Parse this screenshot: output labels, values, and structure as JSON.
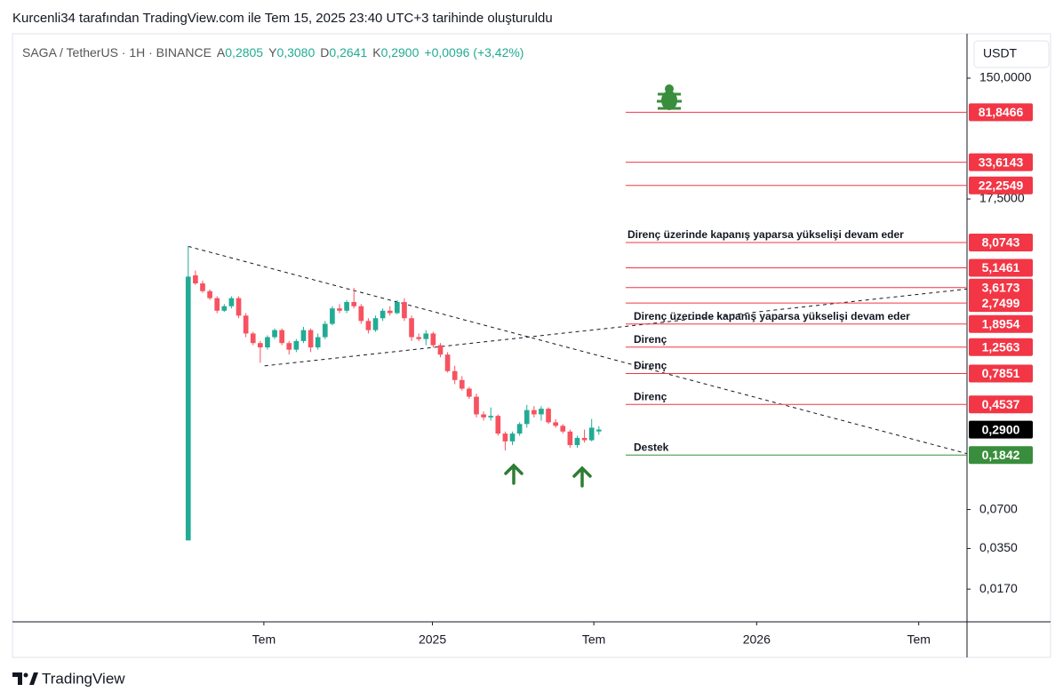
{
  "page_title": "Kurcenli34 tarafından TradingView.com ile Tem 15, 2025 23:40 UTC+3 tarihinde oluşturuldu",
  "brand": "TradingView",
  "chart_data": {
    "type": "candlestick",
    "symbol": "SAGA / TetherUS · 1H · BINANCE",
    "ohlc": [
      {
        "key": "A",
        "label": "0,2805"
      },
      {
        "key": "Y",
        "label": "0,3080"
      },
      {
        "key": "D",
        "label": "0,2641"
      },
      {
        "key": "K",
        "label": "0,2900"
      }
    ],
    "change": "+0,0096 (+3,42%)",
    "currency": "USDT",
    "log_scale": true,
    "up_color": "#22ab94",
    "down_color": "#f7525f",
    "x": [
      0,
      1,
      2,
      3,
      4,
      5,
      6,
      7,
      8,
      9,
      10,
      11,
      12,
      13,
      14,
      15,
      16,
      17,
      18,
      19,
      20,
      21,
      22,
      23,
      24,
      25,
      26,
      27,
      28,
      29,
      30,
      31,
      32,
      33,
      34,
      35,
      36,
      37,
      38,
      39,
      40,
      41,
      42,
      43,
      44,
      45,
      46,
      47,
      48,
      49,
      50,
      51,
      52,
      53,
      54,
      55,
      56,
      57
    ],
    "open": [
      0.0404,
      4.5,
      3.9,
      3.4,
      3.0,
      2.4,
      2.6,
      3.0,
      2.2,
      1.6,
      1.35,
      1.25,
      1.5,
      1.7,
      1.35,
      1.2,
      1.4,
      1.7,
      1.25,
      1.5,
      1.9,
      2.5,
      2.4,
      2.8,
      2.6,
      2.0,
      1.7,
      2.1,
      2.4,
      2.3,
      2.8,
      2.1,
      1.5,
      1.45,
      1.6,
      1.3,
      1.1,
      0.82,
      0.7,
      0.6,
      0.52,
      0.38,
      0.36,
      0.37,
      0.27,
      0.235,
      0.27,
      0.32,
      0.41,
      0.38,
      0.42,
      0.33,
      0.31,
      0.28,
      0.22,
      0.25,
      0.24,
      0.2805
    ],
    "high": [
      7.53,
      4.9,
      4.1,
      3.5,
      3.1,
      2.7,
      3.1,
      3.1,
      2.3,
      1.65,
      1.4,
      1.55,
      1.75,
      1.75,
      1.4,
      1.45,
      1.8,
      1.75,
      1.6,
      2.0,
      2.6,
      2.7,
      2.9,
      3.6,
      2.7,
      2.1,
      2.2,
      2.5,
      2.6,
      2.9,
      3.0,
      2.2,
      1.6,
      1.7,
      1.65,
      1.35,
      1.15,
      0.9,
      0.75,
      0.62,
      0.55,
      0.4,
      0.43,
      0.38,
      0.28,
      0.28,
      0.33,
      0.45,
      0.44,
      0.44,
      0.43,
      0.35,
      0.32,
      0.29,
      0.26,
      0.29,
      0.35,
      0.308
    ],
    "low": [
      0.0404,
      3.8,
      3.3,
      2.9,
      2.3,
      2.35,
      2.5,
      2.1,
      1.5,
      1.3,
      0.95,
      1.2,
      1.45,
      1.3,
      1.1,
      1.15,
      1.35,
      1.15,
      1.2,
      1.45,
      1.85,
      2.3,
      2.3,
      2.5,
      1.9,
      1.6,
      1.65,
      2.0,
      2.2,
      2.25,
      2.0,
      1.4,
      1.4,
      1.3,
      1.25,
      1.05,
      0.8,
      0.65,
      0.58,
      0.5,
      0.36,
      0.34,
      0.34,
      0.26,
      0.2,
      0.22,
      0.26,
      0.3,
      0.36,
      0.34,
      0.32,
      0.3,
      0.27,
      0.21,
      0.21,
      0.23,
      0.235,
      0.2641
    ],
    "close": [
      4.4,
      3.9,
      3.4,
      3.0,
      2.4,
      2.6,
      3.0,
      2.2,
      1.6,
      1.35,
      1.25,
      1.5,
      1.7,
      1.35,
      1.2,
      1.4,
      1.7,
      1.25,
      1.5,
      1.9,
      2.5,
      2.4,
      2.8,
      2.6,
      2.0,
      1.7,
      2.1,
      2.4,
      2.3,
      2.8,
      2.1,
      1.5,
      1.45,
      1.6,
      1.3,
      1.1,
      0.82,
      0.7,
      0.6,
      0.52,
      0.38,
      0.36,
      0.37,
      0.27,
      0.235,
      0.27,
      0.32,
      0.41,
      0.38,
      0.42,
      0.33,
      0.31,
      0.28,
      0.22,
      0.25,
      0.24,
      0.3,
      0.29
    ],
    "xlim": [
      -24.4,
      108.1
    ],
    "xticks": [
      {
        "value": 10.5,
        "label": "Tem"
      },
      {
        "value": 33.9,
        "label": "2025"
      },
      {
        "value": 56.3,
        "label": "Tem"
      },
      {
        "value": 78.9,
        "label": "2026"
      },
      {
        "value": 101.4,
        "label": "Tem"
      }
    ],
    "ylim": [
      0.0095,
      320
    ],
    "yticks": [
      {
        "value": 150,
        "label": "150,0000"
      },
      {
        "value": 17.5,
        "label": "17,5000"
      },
      {
        "value": 0.07,
        "label": "0,0700"
      },
      {
        "value": 0.035,
        "label": "0,0350"
      },
      {
        "value": 0.017,
        "label": "0,0170"
      }
    ],
    "levels": [
      {
        "value": 81.8466,
        "label": "81,8466",
        "color": "#f23645"
      },
      {
        "value": 33.6143,
        "label": "33,6143",
        "color": "#f23645"
      },
      {
        "value": 22.2549,
        "label": "22,2549",
        "color": "#f23645"
      },
      {
        "value": 8.0743,
        "label": "8,0743",
        "color": "#f23645",
        "note": "Direnç üzerinde kapanış yaparsa yükselişi devam eder"
      },
      {
        "value": 5.1461,
        "label": "5,1461",
        "color": "#f23645"
      },
      {
        "value": 3.6173,
        "label": "3,6173",
        "color": "#f23645"
      },
      {
        "value": 2.7499,
        "label": "2,7499",
        "color": "#f23645"
      },
      {
        "value": 1.8954,
        "label": "1,8954",
        "color": "#f23645",
        "note": "Direnç üzerinde kapanış yaparsa yükselişi devam eder"
      },
      {
        "value": 1.2563,
        "label": "1,2563",
        "color": "#f23645",
        "note": "Direnç"
      },
      {
        "value": 0.7851,
        "label": "0,7851",
        "color": "#f23645",
        "note": "Direnç"
      },
      {
        "value": 0.4537,
        "label": "0,4537",
        "color": "#f23645",
        "note": "Direnç"
      },
      {
        "value": 0.1842,
        "label": "0,1842",
        "color": "#388e3c",
        "note": "Destek"
      }
    ],
    "last_price": {
      "value": 0.29,
      "label": "0,2900"
    },
    "trendlines": [
      {
        "x": [
          0,
          108.1
        ],
        "y": [
          7.53,
          0.189
        ]
      },
      {
        "x": [
          10.6,
          108.1
        ],
        "y": [
          0.9,
          3.53
        ]
      }
    ]
  }
}
